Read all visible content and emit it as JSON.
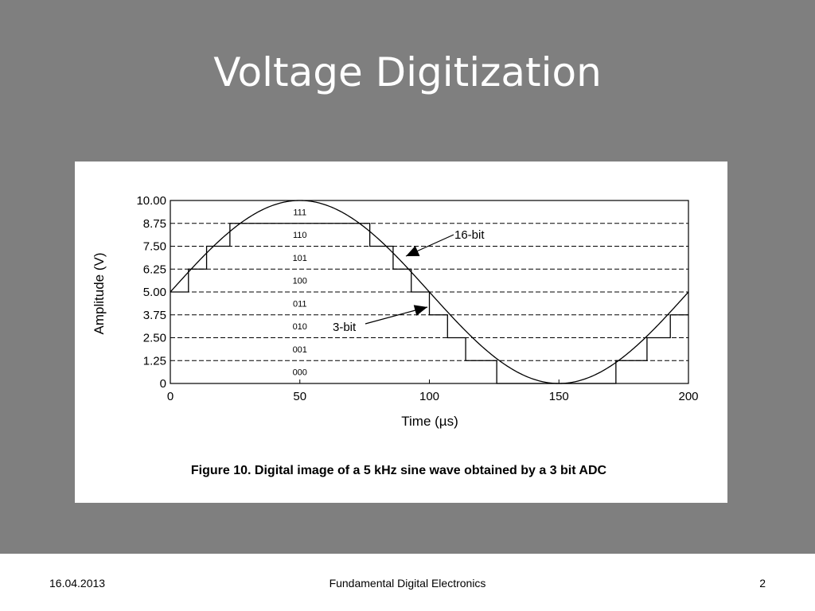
{
  "slide": {
    "title": "Voltage Digitization"
  },
  "footer": {
    "date": "16.04.2013",
    "title": "Fundamental Digital Electronics",
    "page_number": "2"
  },
  "chart_data": {
    "type": "line",
    "caption": "Figure 10. Digital image of a 5 kHz sine wave obtained by a 3 bit ADC",
    "xlabel": "Time (µs)",
    "ylabel": "Amplitude (V)",
    "xlim": [
      0,
      200
    ],
    "ylim": [
      0,
      10
    ],
    "x_ticks": [
      "0",
      "50",
      "100",
      "150",
      "200"
    ],
    "y_ticks": [
      "0",
      "1.25",
      "2.50",
      "3.75",
      "5.00",
      "6.25",
      "7.50",
      "8.75",
      "10.00"
    ],
    "grid": "dashed horizontal lines at each y tick",
    "codes": [
      "000",
      "001",
      "010",
      "011",
      "100",
      "101",
      "110",
      "111"
    ],
    "sine": {
      "frequency_khz": 5,
      "offset_v": 5,
      "amplitude_v": 5
    },
    "series": [
      {
        "label": "16-bit"
      },
      {
        "label": "3-bit",
        "steps": [
          {
            "x": 0,
            "y": 5.0
          },
          {
            "x": 7,
            "y": 6.25
          },
          {
            "x": 14,
            "y": 7.5
          },
          {
            "x": 23,
            "y": 8.75
          },
          {
            "x": 77,
            "y": 7.5
          },
          {
            "x": 86,
            "y": 6.25
          },
          {
            "x": 93,
            "y": 5.0
          },
          {
            "x": 100,
            "y": 3.75
          },
          {
            "x": 107,
            "y": 2.5
          },
          {
            "x": 114,
            "y": 1.25
          },
          {
            "x": 126,
            "y": 0
          },
          {
            "x": 172,
            "y": 1.25
          },
          {
            "x": 184,
            "y": 2.5
          },
          {
            "x": 193,
            "y": 3.75
          },
          {
            "x": 200,
            "y": 3.75
          }
        ]
      }
    ]
  }
}
